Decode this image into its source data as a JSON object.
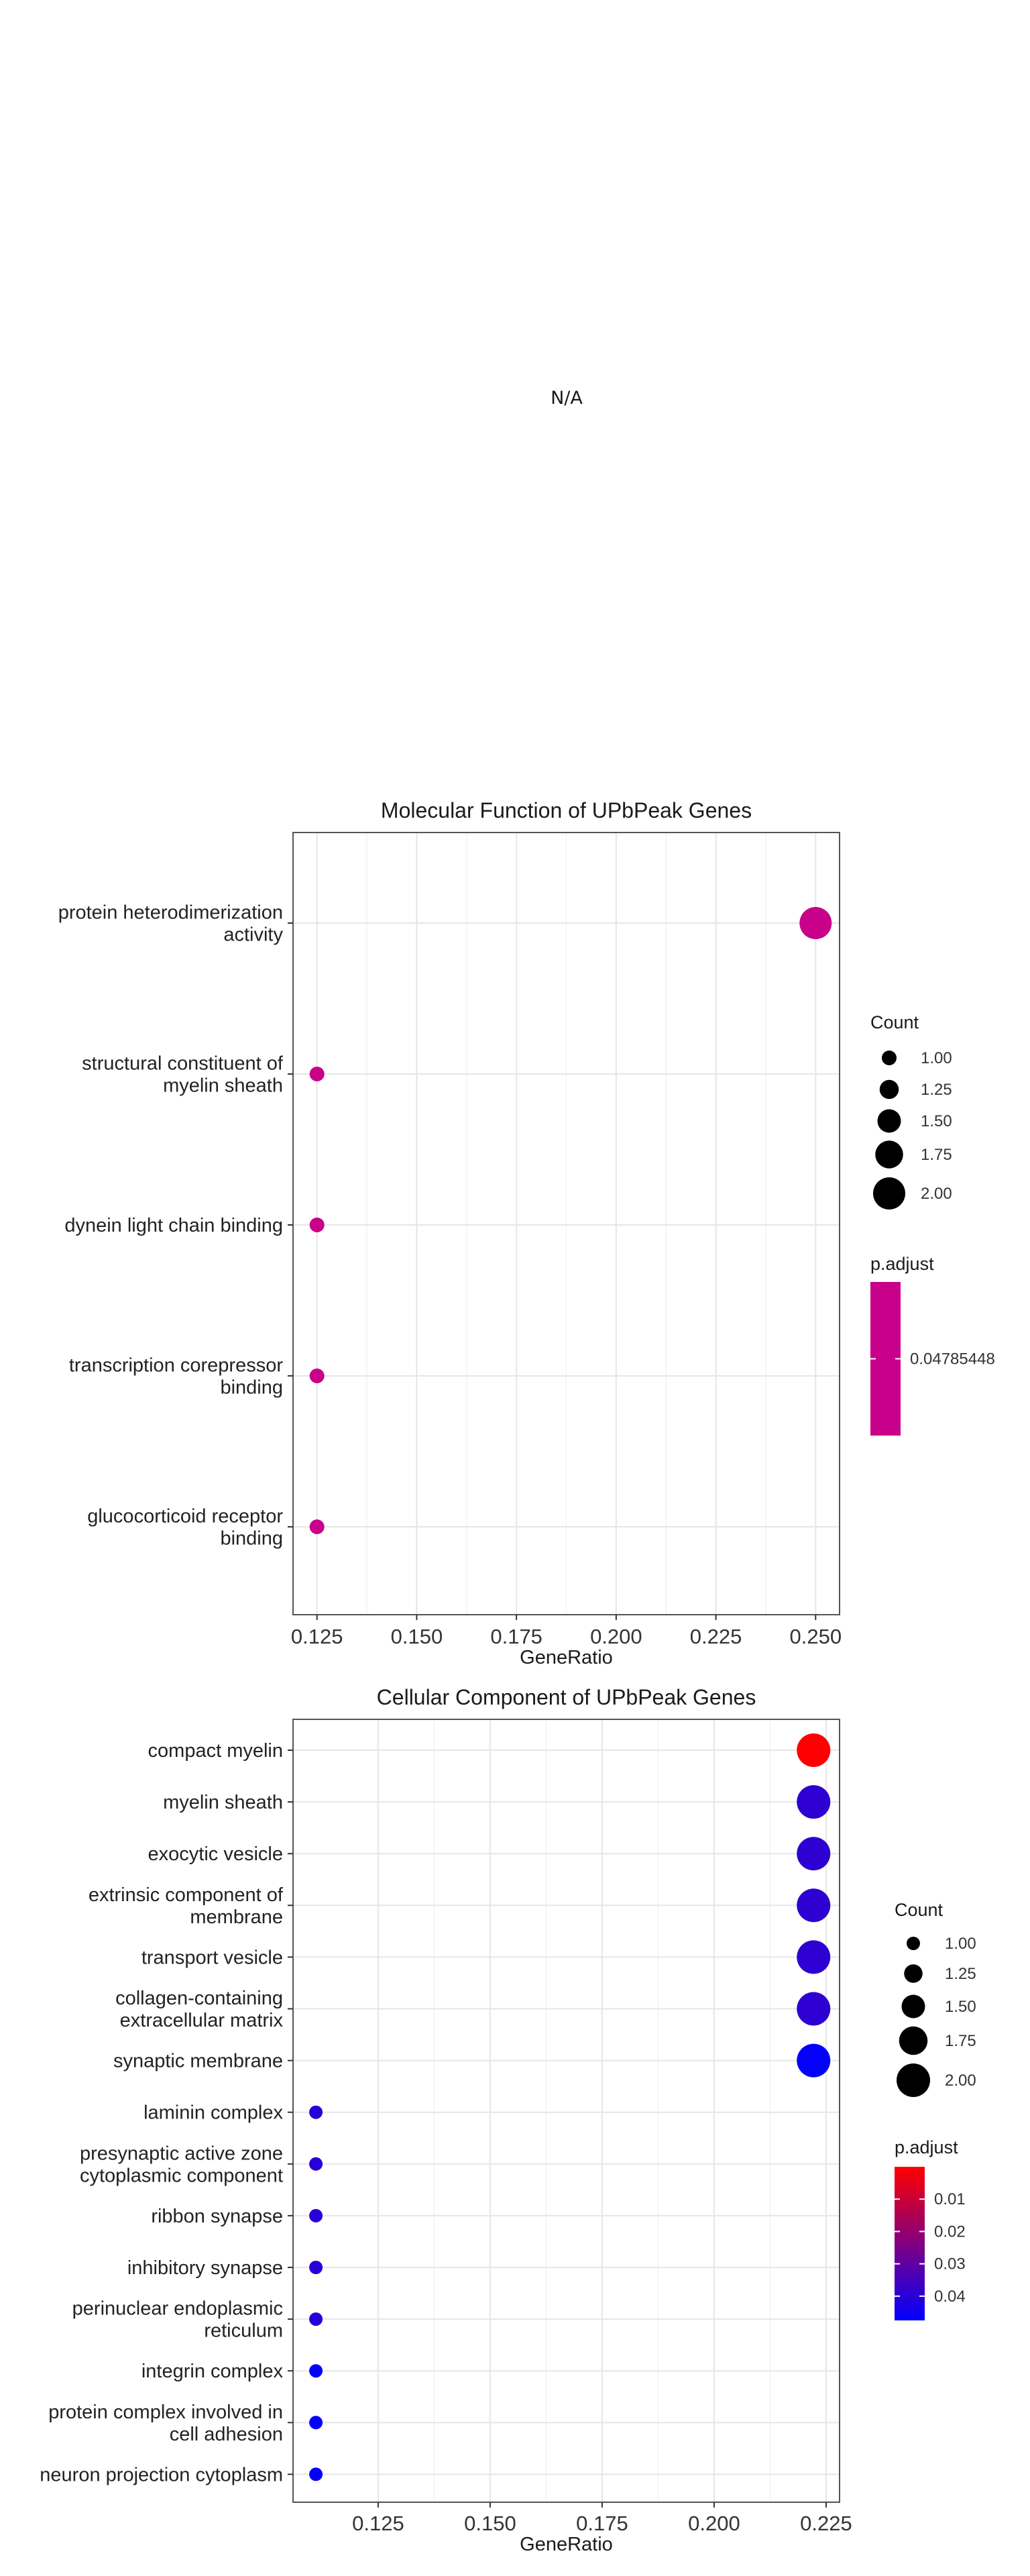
{
  "placeholder": "N/A",
  "chart_data": [
    {
      "type": "scatter",
      "title": "Molecular Function of UPbPeak Genes",
      "xlabel": "GeneRatio",
      "ylabel": "",
      "xlim": [
        0.119,
        0.256
      ],
      "xticks": [
        0.125,
        0.15,
        0.175,
        0.2,
        0.225,
        0.25
      ],
      "xtick_labels": [
        "0.125",
        "0.150",
        "0.175",
        "0.200",
        "0.225",
        "0.250"
      ],
      "categories": [
        [
          "protein heterodimerization",
          "activity"
        ],
        [
          "structural constituent of",
          "myelin sheath"
        ],
        [
          "dynein light chain binding"
        ],
        [
          "transcription corepressor",
          "binding"
        ],
        [
          "glucocorticoid receptor",
          "binding"
        ]
      ],
      "points": [
        {
          "x": 0.25,
          "count": 2,
          "p_adjust": 0.04785448
        },
        {
          "x": 0.125,
          "count": 1,
          "p_adjust": 0.04785448
        },
        {
          "x": 0.125,
          "count": 1,
          "p_adjust": 0.04785448
        },
        {
          "x": 0.125,
          "count": 1,
          "p_adjust": 0.04785448
        },
        {
          "x": 0.125,
          "count": 1,
          "p_adjust": 0.04785448
        }
      ],
      "legend_position": "right",
      "size_legend": {
        "title": "Count",
        "values": [
          1.0,
          1.25,
          1.5,
          1.75,
          2.0
        ],
        "labels": [
          "1.00",
          "1.25",
          "1.50",
          "1.75",
          "2.00"
        ]
      },
      "color_legend": {
        "title": "p.adjust",
        "ticks": [
          0.04785448
        ],
        "tick_labels": [
          "0.04785448"
        ],
        "range": [
          0.04785448,
          0.04785448
        ],
        "colors": [
          "#c8008a"
        ]
      },
      "grid": true
    },
    {
      "type": "scatter",
      "title": "Cellular Component of UPbPeak Genes",
      "xlabel": "GeneRatio",
      "ylabel": "",
      "xlim": [
        0.106,
        0.228
      ],
      "xticks": [
        0.125,
        0.15,
        0.175,
        0.2,
        0.225
      ],
      "xtick_labels": [
        "0.125",
        "0.150",
        "0.175",
        "0.200",
        "0.225"
      ],
      "categories": [
        [
          "compact myelin"
        ],
        [
          "myelin sheath"
        ],
        [
          "exocytic vesicle"
        ],
        [
          "extrinsic component of",
          "membrane"
        ],
        [
          "transport vesicle"
        ],
        [
          "collagen-containing",
          "extracellular matrix"
        ],
        [
          "synaptic membrane"
        ],
        [
          "laminin complex"
        ],
        [
          "presynaptic active zone",
          "cytoplasmic component"
        ],
        [
          "ribbon synapse"
        ],
        [
          "inhibitory synapse"
        ],
        [
          "perinuclear endoplasmic",
          "reticulum"
        ],
        [
          "integrin complex"
        ],
        [
          "protein complex involved in",
          "cell adhesion"
        ],
        [
          "neuron projection cytoplasm"
        ]
      ],
      "points": [
        {
          "x": 0.2222,
          "count": 2,
          "p_adjust": 0.0003
        },
        {
          "x": 0.2222,
          "count": 2,
          "p_adjust": 0.039
        },
        {
          "x": 0.2222,
          "count": 2,
          "p_adjust": 0.039
        },
        {
          "x": 0.2222,
          "count": 2,
          "p_adjust": 0.039
        },
        {
          "x": 0.2222,
          "count": 2,
          "p_adjust": 0.039
        },
        {
          "x": 0.2222,
          "count": 2,
          "p_adjust": 0.039
        },
        {
          "x": 0.2222,
          "count": 2,
          "p_adjust": 0.047
        },
        {
          "x": 0.1111,
          "count": 1,
          "p_adjust": 0.04
        },
        {
          "x": 0.1111,
          "count": 1,
          "p_adjust": 0.04
        },
        {
          "x": 0.1111,
          "count": 1,
          "p_adjust": 0.04
        },
        {
          "x": 0.1111,
          "count": 1,
          "p_adjust": 0.04
        },
        {
          "x": 0.1111,
          "count": 1,
          "p_adjust": 0.04
        },
        {
          "x": 0.1111,
          "count": 1,
          "p_adjust": 0.047
        },
        {
          "x": 0.1111,
          "count": 1,
          "p_adjust": 0.047
        },
        {
          "x": 0.1111,
          "count": 1,
          "p_adjust": 0.047
        }
      ],
      "legend_position": "right",
      "size_legend": {
        "title": "Count",
        "values": [
          1.0,
          1.25,
          1.5,
          1.75,
          2.0
        ],
        "labels": [
          "1.00",
          "1.25",
          "1.50",
          "1.75",
          "2.00"
        ]
      },
      "color_legend": {
        "title": "p.adjust",
        "ticks": [
          0.01,
          0.02,
          0.03,
          0.04
        ],
        "tick_labels": [
          "0.01",
          "0.02",
          "0.03",
          "0.04"
        ],
        "range": [
          0.0,
          0.0475
        ],
        "colors": [
          "#ff0000",
          "#0000ff"
        ]
      },
      "grid": true
    }
  ]
}
